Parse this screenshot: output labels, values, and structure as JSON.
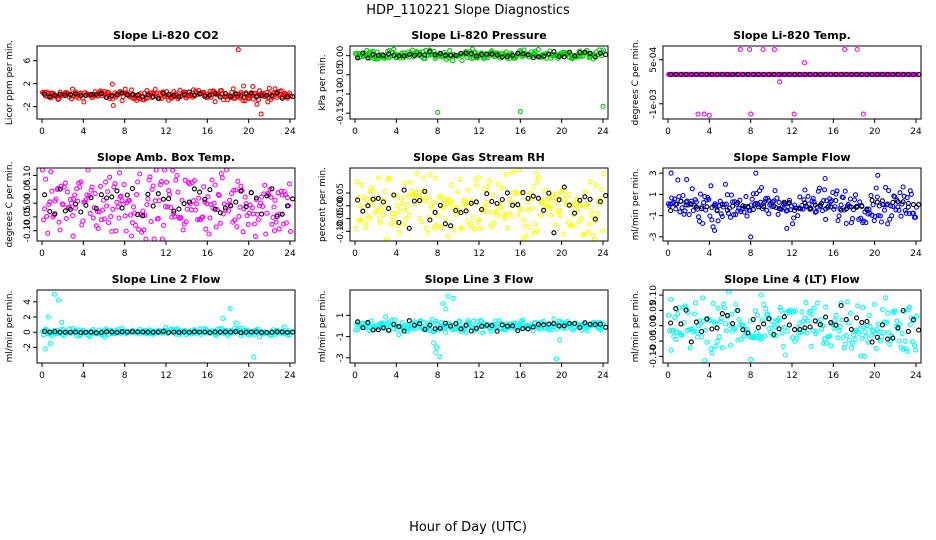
{
  "figure": {
    "title": "HDP_110221  Slope Diagnostics",
    "xlabel": "Hour of Day (UTC)"
  },
  "chart_data": [
    {
      "type": "scatter",
      "title": "Slope Li-820 CO2",
      "ylabel": "Licor ppm per min.",
      "color": "#ff0000",
      "xlim": [
        0,
        24
      ],
      "xticks": [
        0,
        4,
        8,
        12,
        16,
        20,
        24
      ],
      "ylim": [
        -3.8,
        8.2
      ],
      "yticks": [
        -2,
        2,
        6
      ],
      "ytick_labels": [
        "-2",
        "2",
        "6"
      ],
      "noise": {
        "center": 0,
        "spread": 0.45
      },
      "black_spread": 0.25,
      "outliers": [
        {
          "x": 19.0,
          "y": 7.9
        },
        {
          "x": 6.8,
          "y": 1.9
        },
        {
          "x": 6.9,
          "y": -1.8
        },
        {
          "x": 19.5,
          "y": 1.6
        },
        {
          "x": 21.2,
          "y": -3.3
        },
        {
          "x": 20.4,
          "y": 1.5
        },
        {
          "x": 22.0,
          "y": 1.2
        },
        {
          "x": 18.5,
          "y": 1.1
        },
        {
          "x": 20.8,
          "y": -1.6
        }
      ]
    },
    {
      "type": "scatter",
      "title": "Slope Li-820 Pressure",
      "ylabel": "kPa per min.",
      "color": "#00cc00",
      "xlim": [
        0,
        24
      ],
      "xticks": [
        0,
        4,
        8,
        12,
        16,
        20,
        24
      ],
      "ylim": [
        -0.16,
        0.02
      ],
      "yticks": [
        -0.15,
        -0.1,
        -0.05,
        0
      ],
      "ytick_labels": [
        "-0.15",
        "-0.10",
        "-0.05",
        "0.00"
      ],
      "noise": {
        "center": 0.002,
        "spread": 0.006
      },
      "black_spread": 0.004,
      "outliers": [
        {
          "x": 8.0,
          "y": -0.148
        },
        {
          "x": 16.0,
          "y": -0.146
        },
        {
          "x": 24.0,
          "y": -0.132
        }
      ]
    },
    {
      "type": "scatter",
      "title": "Slope Li-820 Temp.",
      "ylabel": "degrees C per min.",
      "color": "#ff00ff",
      "xlim": [
        0,
        24
      ],
      "xticks": [
        0,
        4,
        8,
        12,
        16,
        20,
        24
      ],
      "ylim": [
        -0.00145,
        0.0009
      ],
      "yticks": [
        -0.001,
        0.0005
      ],
      "ytick_labels": [
        "-1e-03",
        "5e-04"
      ],
      "noise": {
        "center": 0.0,
        "spread": 0.0
      },
      "black_spread": 0.0,
      "outliers": [
        {
          "x": 7.0,
          "y": 0.00085
        },
        {
          "x": 7.9,
          "y": 0.00085
        },
        {
          "x": 9.2,
          "y": 0.00085
        },
        {
          "x": 10.3,
          "y": 0.00085
        },
        {
          "x": 17.1,
          "y": 0.00085
        },
        {
          "x": 18.3,
          "y": 0.00085
        },
        {
          "x": 13.2,
          "y": 0.0004
        },
        {
          "x": 10.8,
          "y": -0.00025
        },
        {
          "x": 2.9,
          "y": -0.00135
        },
        {
          "x": 3.5,
          "y": -0.00135
        },
        {
          "x": 8.0,
          "y": -0.00135
        },
        {
          "x": 12.2,
          "y": -0.00135
        },
        {
          "x": 18.9,
          "y": -0.00135
        },
        {
          "x": 4.0,
          "y": -0.0014
        }
      ]
    },
    {
      "type": "scatter",
      "title": "Slope Amb. Box Temp.",
      "ylabel": "degrees C per min.",
      "color": "#ff00ff",
      "xlim": [
        0,
        24
      ],
      "xticks": [
        0,
        4,
        8,
        12,
        16,
        20,
        24
      ],
      "ylim": [
        -0.13,
        0.12
      ],
      "yticks": [
        -0.1,
        -0.05,
        0,
        0.05,
        0.1
      ],
      "ytick_labels": [
        "-0.10",
        "-0.05",
        "0.00",
        "0.05",
        "0.10"
      ],
      "noise": {
        "center": 0.0,
        "spread": 0.06
      },
      "black_spread": 0.035,
      "outliers": [
        {
          "x": 3.0,
          "y": -0.12
        },
        {
          "x": 7.5,
          "y": 0.11
        },
        {
          "x": 22.5,
          "y": -0.1
        }
      ]
    },
    {
      "type": "scatter",
      "title": "Slope Gas Stream RH",
      "ylabel": "percent per min.",
      "color": "#ffff00",
      "xlim": [
        0,
        24
      ],
      "xticks": [
        0,
        4,
        8,
        12,
        16,
        20,
        24
      ],
      "ylim": [
        -0.13,
        0.14
      ],
      "yticks": [
        -0.1,
        -0.05,
        0,
        0.05
      ],
      "ytick_labels": [
        "-0.10",
        "-0.05",
        "0.00",
        "0.05"
      ],
      "noise": {
        "center": 0.0,
        "spread": 0.065
      },
      "black_spread": 0.04,
      "outliers": [
        {
          "x": 17.5,
          "y": 0.13
        },
        {
          "x": 9.0,
          "y": -0.12
        }
      ]
    },
    {
      "type": "scatter",
      "title": "Slope Sample Flow",
      "ylabel": "ml/min per min.",
      "color": "#0000ff",
      "xlim": [
        0,
        24
      ],
      "xticks": [
        0,
        4,
        8,
        12,
        16,
        20,
        24
      ],
      "ylim": [
        -3.2,
        3.3
      ],
      "yticks": [
        -3,
        -1,
        1,
        3
      ],
      "ytick_labels": [
        "-3",
        "-1",
        "1",
        "3"
      ],
      "noise": {
        "center": 0.0,
        "spread": 0.8
      },
      "black_spread": 0.3,
      "outliers": [
        {
          "x": 0.3,
          "y": 3.0
        },
        {
          "x": 8.5,
          "y": 3.0
        },
        {
          "x": 8.0,
          "y": -3.0
        },
        {
          "x": 15.2,
          "y": 2.5
        },
        {
          "x": 4.5,
          "y": -2.4
        },
        {
          "x": 1.8,
          "y": 2.4
        },
        {
          "x": 11.5,
          "y": -2.2
        },
        {
          "x": 20.3,
          "y": 2.8
        }
      ]
    },
    {
      "type": "scatter",
      "title": "Slope Line 2 Flow",
      "ylabel": "ml/min per min.",
      "color": "#00ffff",
      "xlim": [
        0,
        24
      ],
      "xticks": [
        0,
        4,
        8,
        12,
        16,
        20,
        24
      ],
      "ylim": [
        -3.8,
        5.3
      ],
      "yticks": [
        -2,
        0,
        2,
        4
      ],
      "ytick_labels": [
        "-2",
        "0",
        "2",
        "4"
      ],
      "noise": {
        "center": 0.0,
        "spread": 0.25
      },
      "black_spread": 0.05,
      "outliers": [
        {
          "x": 1.2,
          "y": 5.0
        },
        {
          "x": 1.6,
          "y": 4.2
        },
        {
          "x": 0.3,
          "y": -2.2
        },
        {
          "x": 0.6,
          "y": 2.0
        },
        {
          "x": 0.8,
          "y": -1.5
        },
        {
          "x": 1.9,
          "y": 1.3
        },
        {
          "x": 18.2,
          "y": 3.1
        },
        {
          "x": 17.5,
          "y": 1.8
        },
        {
          "x": 20.5,
          "y": -3.3
        },
        {
          "x": 18.8,
          "y": 1.2
        }
      ]
    },
    {
      "type": "scatter",
      "title": "Slope Line 3 Flow",
      "ylabel": "ml/min per min.",
      "color": "#00ffff",
      "xlim": [
        0,
        24
      ],
      "xticks": [
        0,
        4,
        8,
        12,
        16,
        20,
        24
      ],
      "ylim": [
        -3.3,
        3.2
      ],
      "yticks": [
        -3,
        -1,
        1
      ],
      "ytick_labels": [
        "-3",
        "-1",
        "1"
      ],
      "noise": {
        "center": 0.0,
        "spread": 0.3
      },
      "black_spread": 0.25,
      "outliers": [
        {
          "x": 9.0,
          "y": 2.8
        },
        {
          "x": 8.5,
          "y": 2.1
        },
        {
          "x": 9.5,
          "y": 2.6
        },
        {
          "x": 7.8,
          "y": -2.5
        },
        {
          "x": 8.2,
          "y": -2.9
        },
        {
          "x": 7.6,
          "y": -1.6
        },
        {
          "x": 8.8,
          "y": 1.6
        },
        {
          "x": 19.5,
          "y": -3.1
        },
        {
          "x": 19.8,
          "y": -1.3
        },
        {
          "x": 7.9,
          "y": -2.0
        }
      ]
    },
    {
      "type": "scatter",
      "title": "Slope Line 4 (LT) Flow",
      "ylabel": "ml/min per min.",
      "color": "#00ffff",
      "xlim": [
        0,
        24
      ],
      "xticks": [
        0,
        4,
        8,
        12,
        16,
        20,
        24
      ],
      "ylim": [
        -0.115,
        0.11
      ],
      "yticks": [
        -0.1,
        -0.05,
        0,
        0.05,
        0.1
      ],
      "ytick_labels": [
        "-0.10",
        "-0.05",
        "0.00",
        "0.05",
        "0.10"
      ],
      "noise": {
        "center": 0.0,
        "spread": 0.045
      },
      "black_spread": 0.03,
      "outliers": [
        {
          "x": 9.0,
          "y": 0.1
        },
        {
          "x": 0.3,
          "y": -0.08
        },
        {
          "x": 8.0,
          "y": -0.11
        },
        {
          "x": 19.0,
          "y": -0.1
        }
      ]
    }
  ]
}
